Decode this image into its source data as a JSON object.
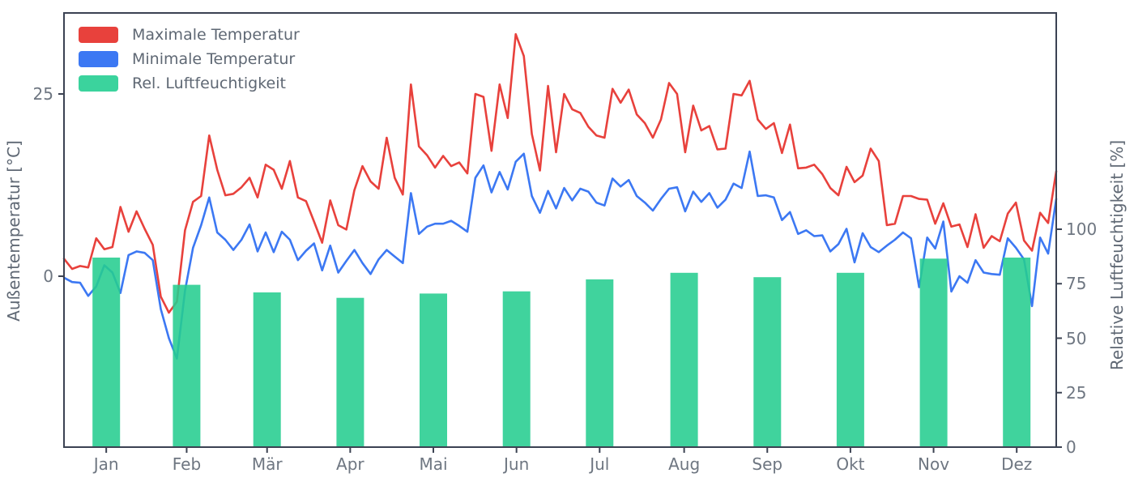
{
  "chart_data": {
    "type": "line+bar",
    "title": "",
    "months": [
      "Jan",
      "Feb",
      "Mär",
      "Apr",
      "Mai",
      "Jun",
      "Jul",
      "Aug",
      "Sep",
      "Okt",
      "Nov",
      "Dez"
    ],
    "month_day_centers": [
      15.5,
      45,
      74.5,
      105,
      135.5,
      166,
      196.5,
      227.5,
      258,
      288.5,
      319,
      349.5
    ],
    "x_range_days": [
      0,
      364
    ],
    "left_axis": {
      "label": "Außentemperatur [°C]",
      "unit": "°C",
      "tick_labels": [
        "25",
        "0"
      ],
      "tick_values": [
        25,
        0
      ],
      "range": [
        -23.6,
        36.1
      ]
    },
    "right_axis": {
      "label": "Relative Luftfeuchtigkeit [%]",
      "unit": "%",
      "tick_labels": [
        "100",
        "75",
        "50",
        "25",
        "0"
      ],
      "tick_values": [
        100,
        75,
        50,
        25,
        0
      ],
      "range": [
        0,
        199
      ]
    },
    "legend": [
      {
        "label": "Maximale Temperatur",
        "color": "#e8413c",
        "type": "line"
      },
      {
        "label": "Minimale Temperatur",
        "color": "#3c78f3",
        "type": "line"
      },
      {
        "label": "Rel. Luftfeuchtigkeit",
        "color": "#3bd39d",
        "type": "bar"
      }
    ],
    "series": [
      {
        "name": "Maximale Temperatur",
        "axis": "left",
        "color": "#e8413c",
        "sampling": "evenly spaced Jan 1 – Dec 31, ~3-day steps",
        "values": [
          2.4,
          1.0,
          1.4,
          1.2,
          5.2,
          3.7,
          4.0,
          9.5,
          6.1,
          8.9,
          6.5,
          4.3,
          -2.8,
          -5.0,
          -3.5,
          6.3,
          10.2,
          11.0,
          19.3,
          14.6,
          11.1,
          11.3,
          12.2,
          13.5,
          10.8,
          15.3,
          14.6,
          12.0,
          15.8,
          10.8,
          10.3,
          7.5,
          4.6,
          10.4,
          7.0,
          6.4,
          11.8,
          15.1,
          13.0,
          12.0,
          19.0,
          13.5,
          11.2,
          26.3,
          17.8,
          16.6,
          14.9,
          16.5,
          15.1,
          15.6,
          14.1,
          25.0,
          24.6,
          17.2,
          26.3,
          21.7,
          33.2,
          30.2,
          19.5,
          14.5,
          26.1,
          17.0,
          25.0,
          22.9,
          22.4,
          20.5,
          19.3,
          19.0,
          25.7,
          23.8,
          25.6,
          22.2,
          21.0,
          19.0,
          21.5,
          26.5,
          25.0,
          17.0,
          23.4,
          20.0,
          20.6,
          17.4,
          17.5,
          25.0,
          24.8,
          26.8,
          21.5,
          20.2,
          21.0,
          16.9,
          20.8,
          14.8,
          14.9,
          15.3,
          14.0,
          12.1,
          11.1,
          15.0,
          12.9,
          13.8,
          17.5,
          15.8,
          7.0,
          7.2,
          11.0,
          11.0,
          10.6,
          10.5,
          7.2,
          10.0,
          6.8,
          7.1,
          4.0,
          8.5,
          3.9,
          5.5,
          4.8,
          8.6,
          10.1,
          4.9,
          3.5,
          8.7,
          7.3,
          14.4
        ]
      },
      {
        "name": "Minimale Temperatur",
        "axis": "left",
        "color": "#3c78f3",
        "sampling": "evenly spaced Jan 1 – Dec 31, ~3-day steps",
        "values": [
          -0.2,
          -0.8,
          -0.9,
          -2.7,
          -1.4,
          1.5,
          0.5,
          -2.3,
          2.9,
          3.4,
          3.2,
          2.2,
          -4.5,
          -8.5,
          -11.3,
          -2.0,
          3.9,
          7.0,
          10.8,
          6.0,
          5.0,
          3.6,
          5.0,
          7.1,
          3.4,
          6.0,
          3.3,
          6.1,
          5.0,
          2.2,
          3.5,
          4.5,
          0.8,
          4.2,
          0.5,
          2.1,
          3.6,
          1.8,
          0.3,
          2.3,
          3.6,
          2.7,
          1.8,
          11.4,
          5.8,
          6.8,
          7.2,
          7.2,
          7.6,
          6.9,
          6.1,
          13.5,
          15.2,
          11.5,
          14.3,
          11.9,
          15.7,
          16.8,
          11.0,
          8.7,
          11.7,
          9.3,
          12.1,
          10.4,
          12.0,
          11.6,
          10.1,
          9.7,
          13.4,
          12.3,
          13.2,
          11.0,
          10.1,
          9.0,
          10.6,
          12.0,
          12.2,
          8.9,
          11.6,
          10.2,
          11.4,
          9.4,
          10.5,
          12.7,
          12.1,
          17.1,
          11.0,
          11.1,
          10.8,
          7.7,
          8.8,
          5.8,
          6.3,
          5.5,
          5.6,
          3.4,
          4.4,
          6.5,
          1.9,
          5.9,
          4.0,
          3.3,
          4.2,
          5.0,
          6.0,
          5.2,
          -1.5,
          5.3,
          3.8,
          7.5,
          -2.1,
          0.0,
          -0.9,
          2.2,
          0.5,
          0.3,
          0.2,
          5.2,
          3.9,
          2.3,
          -4.1,
          5.3,
          3.1,
          10.6
        ]
      },
      {
        "name": "Rel. Luftfeuchtigkeit",
        "axis": "right",
        "color": "#3bd39d",
        "type": "bar",
        "values": [
          87,
          74.5,
          71,
          68.5,
          70.5,
          71.5,
          77,
          80,
          78,
          80,
          86.5,
          87
        ]
      }
    ]
  },
  "style_colors": {
    "max_temp_line": "#e8413c",
    "min_temp_line": "#3c78f3",
    "humidity_bar": "#3bd39d",
    "axes_frame": "#3b4252",
    "tick_text": "#6e7681",
    "label_text": "#5f6874",
    "background": "#ffffff"
  }
}
